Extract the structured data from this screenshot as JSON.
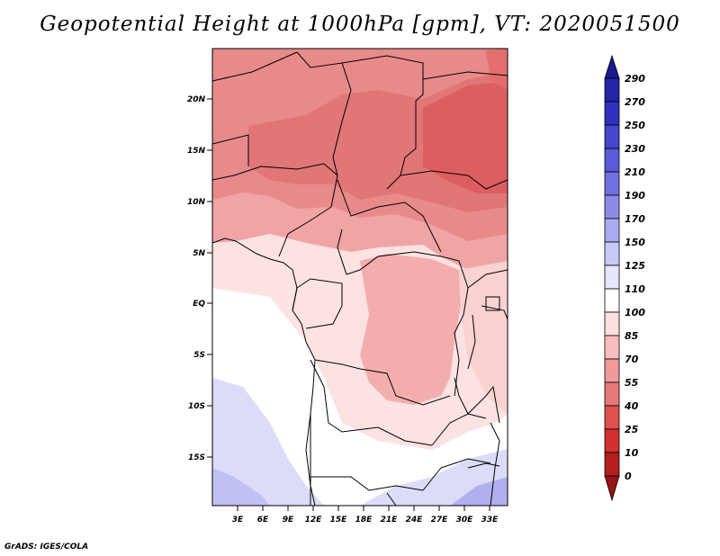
{
  "title": "Geopotential Height at 1000hPa [gpm], VT: 2020051500",
  "credit": "GrADS: IGES/COLA",
  "map": {
    "lat_labels": [
      "20N",
      "15N",
      "10N",
      "5N",
      "EQ",
      "5S",
      "10S",
      "15S"
    ],
    "lon_labels": [
      "3E",
      "6E",
      "9E",
      "12E",
      "15E",
      "18E",
      "21E",
      "24E",
      "27E",
      "30E",
      "33E"
    ]
  },
  "colorbar": {
    "levels": [
      "290",
      "270",
      "250",
      "230",
      "210",
      "190",
      "170",
      "150",
      "125",
      "110",
      "100",
      "85",
      "70",
      "55",
      "40",
      "25",
      "10",
      "0"
    ],
    "colors": [
      "#1a1a8c",
      "#2424a6",
      "#3030c0",
      "#4646cc",
      "#5a5ad6",
      "#7070e0",
      "#8c8ce8",
      "#aaaaf0",
      "#c8c8f6",
      "#e6e6fc",
      "#ffffff",
      "#fde0e0",
      "#f8bcbc",
      "#f09a9a",
      "#e67878",
      "#e05050",
      "#d03030",
      "#b41e1e",
      "#961414"
    ]
  }
}
